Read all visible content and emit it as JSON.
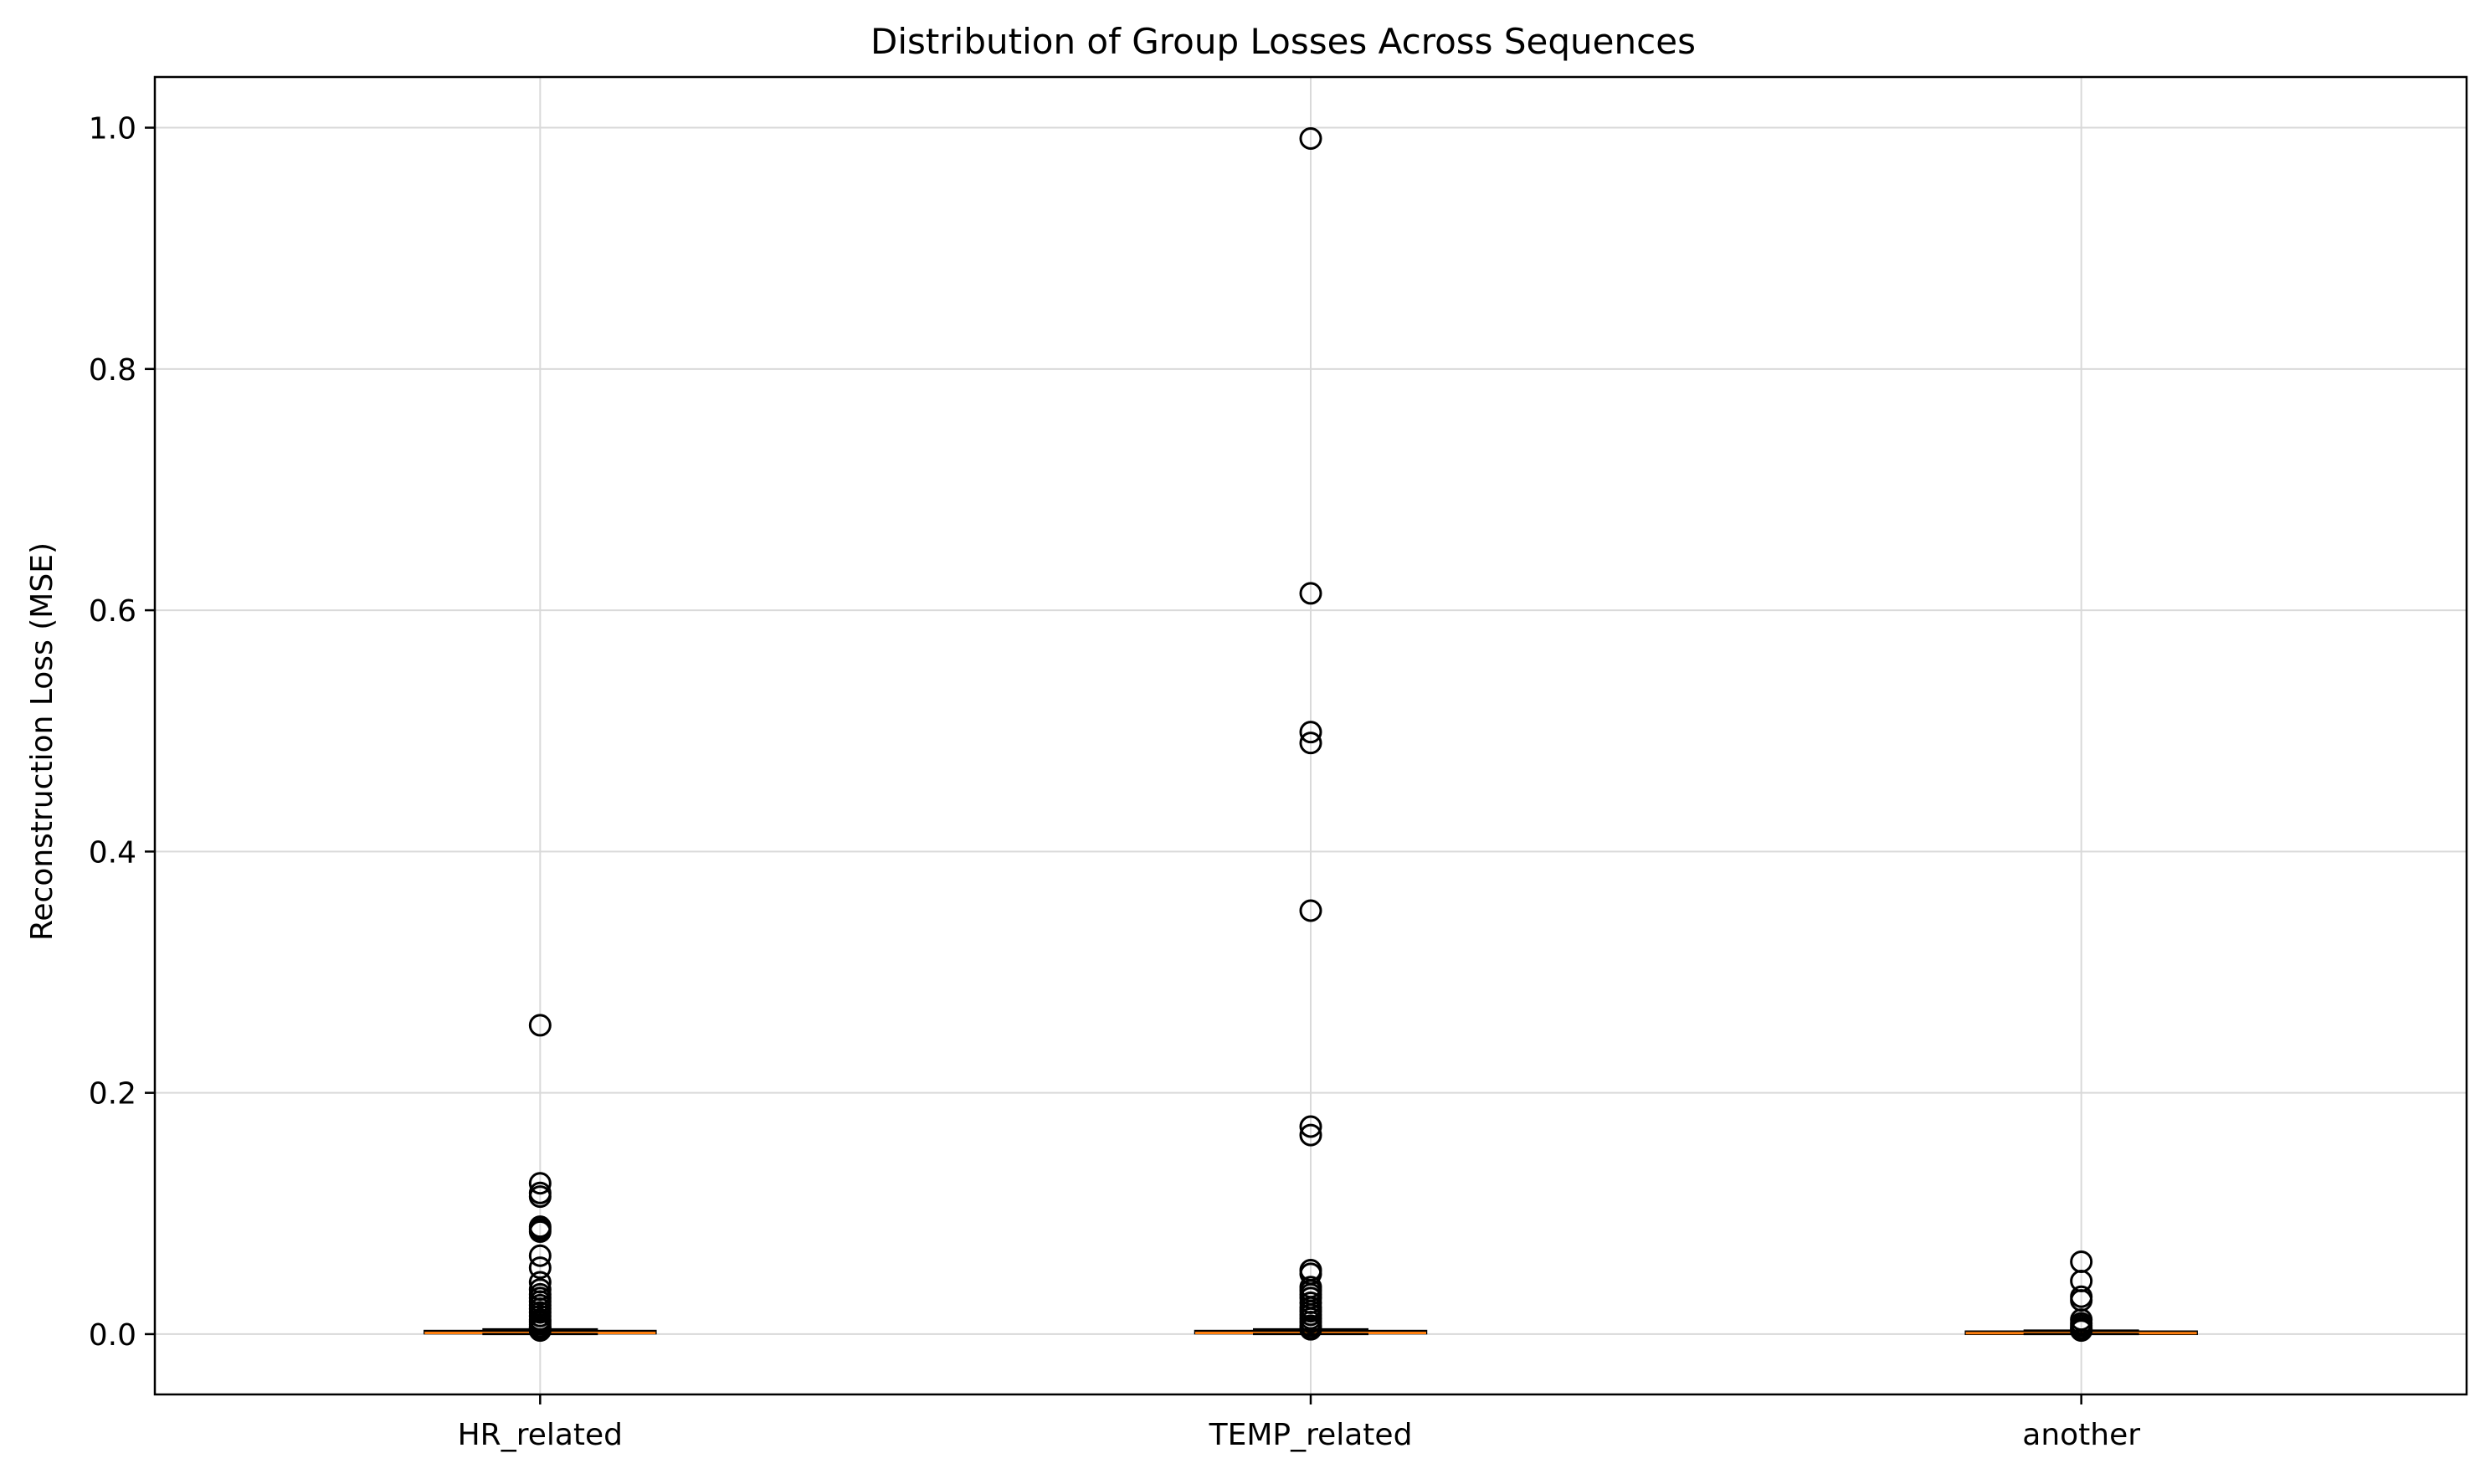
{
  "chart_data": {
    "type": "box",
    "title": "Distribution of Group Losses Across Sequences",
    "xlabel": "",
    "ylabel": "Reconstruction Loss (MSE)",
    "ylim": [
      -0.05,
      1.042
    ],
    "yticks": [
      0.0,
      0.2,
      0.4,
      0.6,
      0.8,
      1.0
    ],
    "ytick_labels": [
      "0.0",
      "0.2",
      "0.4",
      "0.6",
      "0.8",
      "1.0"
    ],
    "grid": true,
    "categories": [
      "HR_related",
      "TEMP_related",
      "another"
    ],
    "boxes": [
      {
        "name": "HR_related",
        "whisker_low": 0.0,
        "q1": 0.0005,
        "median": 0.001,
        "q3": 0.002,
        "whisker_high": 0.004,
        "fliers": [
          0.256,
          0.125,
          0.117,
          0.114,
          0.089,
          0.087,
          0.085,
          0.065,
          0.055,
          0.043,
          0.037,
          0.033,
          0.03,
          0.027,
          0.024,
          0.021,
          0.018,
          0.015,
          0.012,
          0.01,
          0.008,
          0.006,
          0.005,
          0.004,
          0.003
        ]
      },
      {
        "name": "TEMP_related",
        "whisker_low": 0.0,
        "q1": 0.0005,
        "median": 0.001,
        "q3": 0.002,
        "whisker_high": 0.004,
        "fliers": [
          0.991,
          0.614,
          0.499,
          0.49,
          0.351,
          0.172,
          0.165,
          0.053,
          0.05,
          0.039,
          0.036,
          0.033,
          0.03,
          0.026,
          0.022,
          0.019,
          0.016,
          0.013,
          0.01,
          0.007,
          0.005,
          0.004
        ]
      },
      {
        "name": "another",
        "whisker_low": 0.0,
        "q1": 0.0003,
        "median": 0.0008,
        "q3": 0.0015,
        "whisker_high": 0.003,
        "fliers": [
          0.06,
          0.044,
          0.031,
          0.028,
          0.012,
          0.009,
          0.007,
          0.005,
          0.004,
          0.003
        ]
      }
    ]
  }
}
